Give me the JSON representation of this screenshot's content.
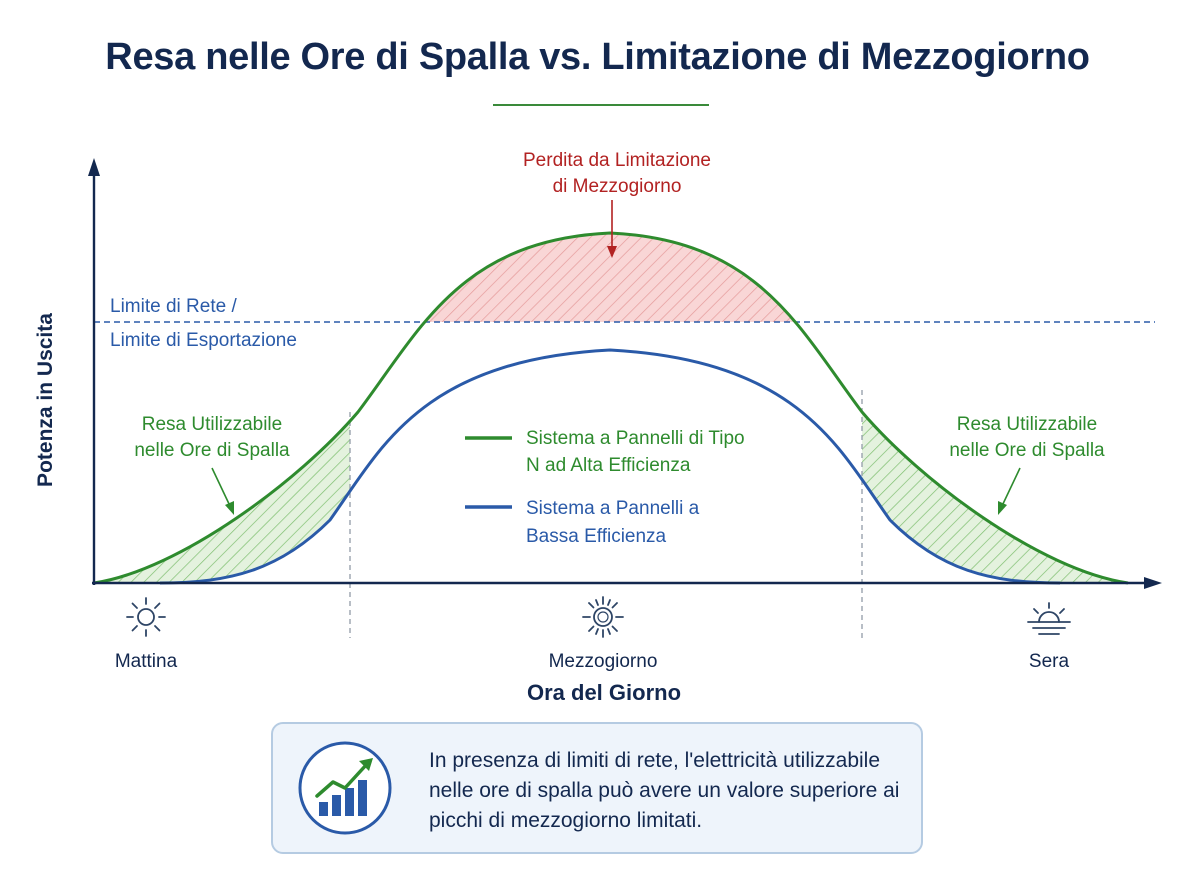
{
  "title": "Resa nelle Ore di Spalla vs. Limitazione di Mezzogiorno",
  "axes": {
    "y_label": "Potenza in Uscita",
    "x_label": "Ora del Giorno",
    "x_ticks": [
      "Mattina",
      "Mezzogiorno",
      "Sera"
    ]
  },
  "grid_limit": {
    "line1": "Limite di Rete /",
    "line2": "Limite di Esportazione"
  },
  "annotations": {
    "clipping_loss": {
      "line1": "Perdita da Limitazione",
      "line2": "di Mezzogiorno"
    },
    "shoulder_left": {
      "line1": "Resa Utilizzabile",
      "line2": "nelle Ore di Spalla"
    },
    "shoulder_right": {
      "line1": "Resa Utilizzabile",
      "line2": "nelle Ore di Spalla"
    }
  },
  "legend": {
    "high": {
      "line1": "Sistema a Pannelli di Tipo",
      "line2": "N ad Alta Efficienza"
    },
    "low": {
      "line1": "Sistema a Pannelli a",
      "line2": "Bassa Efficienza"
    }
  },
  "callout": {
    "text": "In presenza di limiti di rete, l'elettricità utilizzabile nelle ore di spalla può avere un valore superiore ai picchi di mezzogiorno limitati."
  },
  "icons": {
    "morning": "sun-icon",
    "noon": "sun-bright-icon",
    "evening": "sunset-icon",
    "callout": "growth-chart-icon"
  },
  "colors": {
    "title": "#13284f",
    "high_efficiency": "#2e8b2e",
    "low_efficiency": "#2a5aa8",
    "grid_limit": "#2a5aa8",
    "clipping_loss": "#b22222",
    "clipping_fill": "#f6c7c7",
    "shoulder_fill": "#dcefd6"
  }
}
